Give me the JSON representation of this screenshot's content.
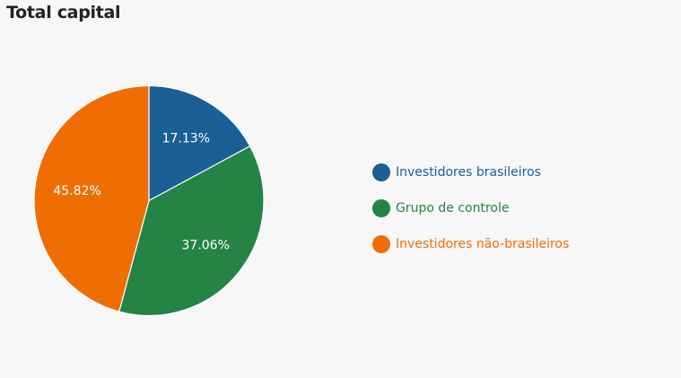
{
  "chart_data": {
    "type": "pie",
    "title": "Total capital",
    "categories": [
      "Investidores brasileiros",
      "Grupo de controle",
      "Investidores não-brasileiros"
    ],
    "values": [
      17.13,
      37.06,
      45.82
    ],
    "value_labels": [
      "17.13%",
      "37.06%",
      "45.82%"
    ],
    "colors": [
      "#1a6096",
      "#248445",
      "#ee6e04"
    ],
    "legend_position": "right"
  }
}
